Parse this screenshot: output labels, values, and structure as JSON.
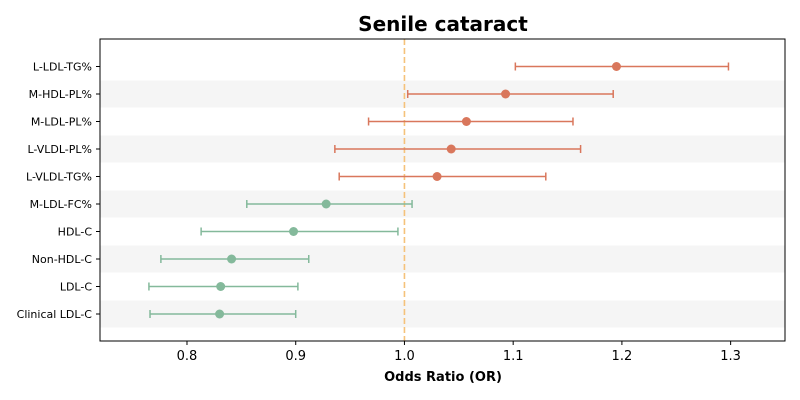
{
  "chart_data": {
    "type": "forest",
    "title": "Senile cataract",
    "xlabel": "Odds Ratio (OR)",
    "xlim": [
      0.72,
      1.35
    ],
    "xticks": [
      0.8,
      0.9,
      1.0,
      1.1,
      1.2,
      1.3
    ],
    "xtick_labels": [
      "0.8",
      "0.9",
      "1.0",
      "1.1",
      "1.2",
      "1.3"
    ],
    "reference_line": 1.0,
    "reference_color": "#f5c27a",
    "band_color": "#f5f5f5",
    "grid": false,
    "rows": [
      {
        "label": "L-LDL-TG%",
        "or": 1.195,
        "lower": 1.102,
        "upper": 1.298,
        "color": "#d9775c"
      },
      {
        "label": "M-HDL-PL%",
        "or": 1.093,
        "lower": 1.003,
        "upper": 1.192,
        "color": "#d9775c"
      },
      {
        "label": "M-LDL-PL%",
        "or": 1.057,
        "lower": 0.967,
        "upper": 1.155,
        "color": "#d9775c"
      },
      {
        "label": "L-VLDL-PL%",
        "or": 1.043,
        "lower": 0.936,
        "upper": 1.162,
        "color": "#d9775c"
      },
      {
        "label": "L-VLDL-TG%",
        "or": 1.03,
        "lower": 0.94,
        "upper": 1.13,
        "color": "#d9775c"
      },
      {
        "label": "M-LDL-FC%",
        "or": 0.928,
        "lower": 0.855,
        "upper": 1.007,
        "color": "#84b99b"
      },
      {
        "label": "HDL-C",
        "or": 0.898,
        "lower": 0.813,
        "upper": 0.994,
        "color": "#84b99b"
      },
      {
        "label": "Non-HDL-C",
        "or": 0.841,
        "lower": 0.776,
        "upper": 0.912,
        "color": "#84b99b"
      },
      {
        "label": "LDL-C",
        "or": 0.831,
        "lower": 0.765,
        "upper": 0.902,
        "color": "#84b99b"
      },
      {
        "label": "Clinical LDL-C",
        "or": 0.83,
        "lower": 0.766,
        "upper": 0.9,
        "color": "#84b99b"
      }
    ]
  }
}
